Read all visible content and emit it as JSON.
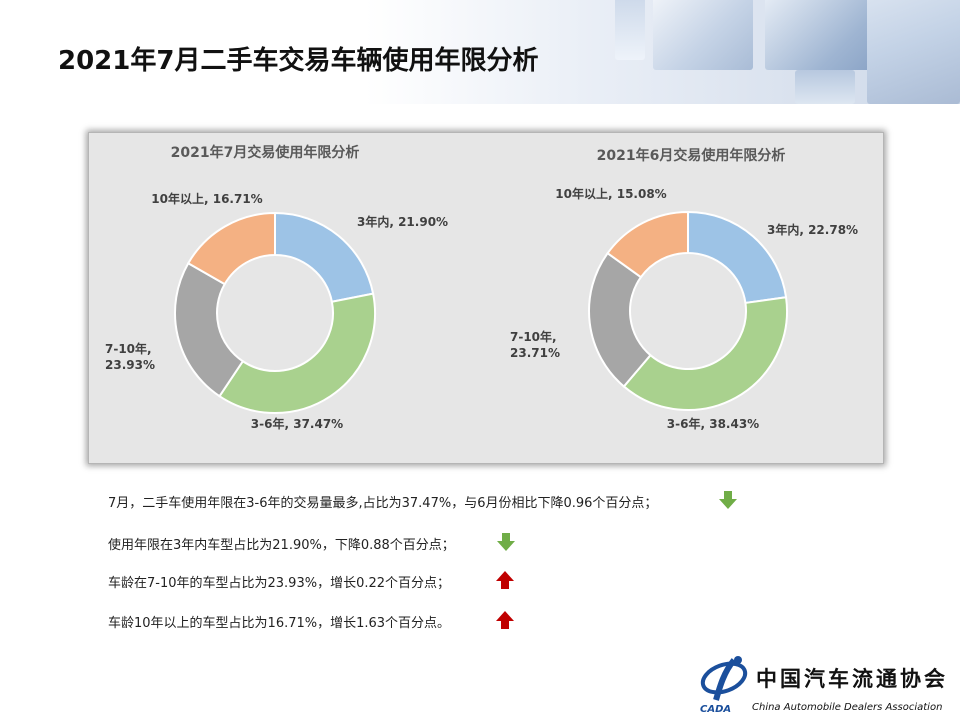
{
  "page": {
    "title": "2021年7月二手车交易车辆使用年限分析"
  },
  "chart_data": [
    {
      "type": "pie",
      "title": "2021年7月交易使用年限分析",
      "slices": [
        {
          "label": "3年内",
          "value": 21.9,
          "value_label": "21.90%",
          "color": "#9dc3e6"
        },
        {
          "label": "3-6年",
          "value": 37.47,
          "value_label": "37.47%",
          "color": "#a9d18e"
        },
        {
          "label": "7-10年",
          "value": 23.93,
          "value_label": "23.93%",
          "color": "#a6a6a6"
        },
        {
          "label": "10年以上",
          "value": 16.71,
          "value_label": "16.71%",
          "color": "#f4b183"
        }
      ]
    },
    {
      "type": "pie",
      "title": "2021年6月交易使用年限分析",
      "slices": [
        {
          "label": "3年内",
          "value": 22.78,
          "value_label": "22.78%",
          "color": "#9dc3e6"
        },
        {
          "label": "3-6年",
          "value": 38.43,
          "value_label": "38.43%",
          "color": "#a9d18e"
        },
        {
          "label": "7-10年",
          "value": 23.71,
          "value_label": "23.71%",
          "color": "#a6a6a6"
        },
        {
          "label": "10年以上",
          "value": 15.08,
          "value_label": "15.08%",
          "color": "#f4b183"
        }
      ]
    }
  ],
  "notes": [
    {
      "text": "7月，二手车使用年限在3-6年的交易量最多,占比为37.47%，与6月份相比下降0.96个百分点；",
      "direction": "down",
      "color": "#70ad47"
    },
    {
      "text": "使用年限在3年内车型占比为21.90%，下降0.88个百分点；",
      "direction": "down",
      "color": "#70ad47"
    },
    {
      "text": "车龄在7-10年的车型占比为23.93%，增长0.22个百分点；",
      "direction": "up",
      "color": "#c00000"
    },
    {
      "text": "车龄10年以上的车型占比为16.71%，增长1.63个百分点。",
      "direction": "up",
      "color": "#c00000"
    }
  ],
  "logo": {
    "name_cn": "中国汽车流通协会",
    "name_en": "China Automobile Dealers Association",
    "abbr": "CADA"
  }
}
